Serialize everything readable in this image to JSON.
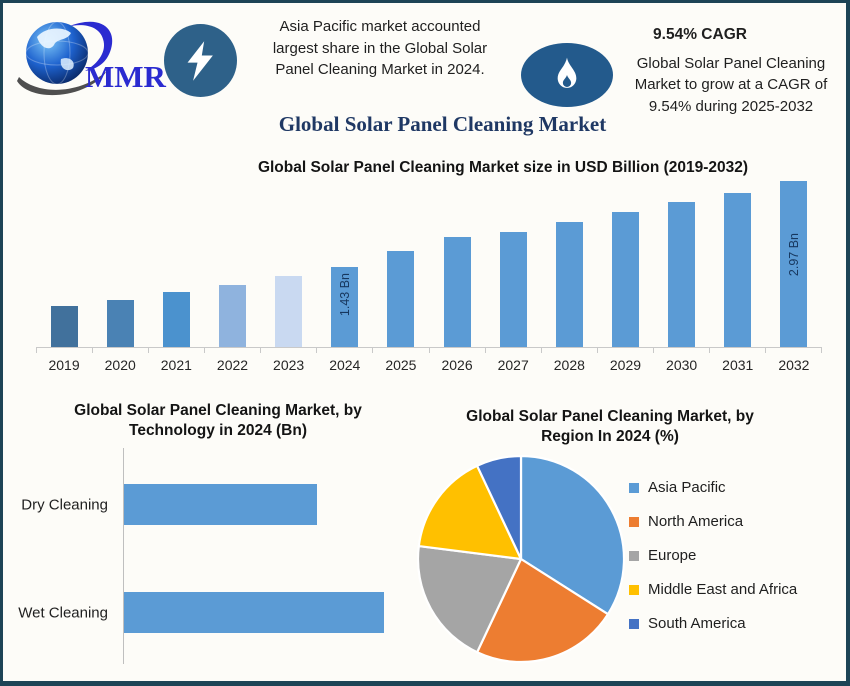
{
  "header": {
    "logo_text": "MMR",
    "note_left": {
      "lines": [
        "Asia Pacific market accounted",
        "largest share in the Global Solar",
        "Panel Cleaning Market in 2024."
      ]
    },
    "note_right": {
      "title": "9.54% CAGR",
      "lines": [
        "Global Solar Panel Cleaning",
        "Market to grow at a CAGR of",
        "9.54% during 2025-2032"
      ]
    }
  },
  "main_title": "Global Solar Panel Cleaning Market",
  "palette": {
    "frame_border": "#1D4456",
    "badge_circle": "#2E6189",
    "badge_ellipse": "#235A8C",
    "main_title_navy": "#1F3864",
    "primary_bar_blue": "#5B9BD5",
    "bar_value_label_navy": "#17375E",
    "logo_blue": "#2B2BD0"
  },
  "chart_data": [
    {
      "id": "market_size_by_year",
      "type": "bar",
      "title": "Global Solar Panel Cleaning Market size in USD Billion (2019-2032)",
      "xlabel": "",
      "ylabel": "USD Billion",
      "ylim": [
        0,
        3.2
      ],
      "grid": false,
      "categories": [
        "2019",
        "2020",
        "2021",
        "2022",
        "2023",
        "2024",
        "2025",
        "2026",
        "2027",
        "2028",
        "2029",
        "2030",
        "2031",
        "2032"
      ],
      "values": [
        0.73,
        0.84,
        0.98,
        1.12,
        1.28,
        1.43,
        1.72,
        1.97,
        2.06,
        2.24,
        2.42,
        2.6,
        2.76,
        2.97
      ],
      "bar_labels": {
        "2024": "1.43 Bn",
        "2032": "2.97 Bn"
      },
      "bar_colors": [
        "#41719C",
        "#4A82B4",
        "#4B92CE",
        "#8FB3DE",
        "#C9D9F1",
        "#5B9BD5",
        "#5B9BD5",
        "#5B9BD5",
        "#5B9BD5",
        "#5B9BD5",
        "#5B9BD5",
        "#5B9BD5",
        "#5B9BD5",
        "#5B9BD5"
      ]
    },
    {
      "id": "by_technology_2024",
      "type": "bar",
      "orientation": "horizontal",
      "title": "Global Solar Panel Cleaning Market, by Technology in 2024 (Bn)",
      "title_lines": [
        "Global Solar Panel Cleaning Market, by",
        "Technology in 2024 (Bn)"
      ],
      "categories": [
        "Dry Cleaning",
        "Wet Cleaning"
      ],
      "values": [
        0.61,
        0.82
      ],
      "unit": "Bn",
      "color": "#5B9BD5",
      "grid": false
    },
    {
      "id": "by_region_2024",
      "type": "pie",
      "title": "Global Solar Panel Cleaning Market, by Region In 2024 (%)",
      "title_lines": [
        "Global Solar Panel Cleaning Market, by",
        "Region In 2024 (%)"
      ],
      "labels": [
        "Asia Pacific",
        "North America",
        "Europe",
        "Middle East and Africa",
        "South America"
      ],
      "values": [
        34,
        23,
        20,
        16,
        7
      ],
      "colors": [
        "#5B9BD5",
        "#ED7D31",
        "#A5A5A5",
        "#FFC000",
        "#4472C4"
      ],
      "legend_position": "right",
      "start_angle_deg": 0,
      "direction": "clockwise"
    }
  ]
}
